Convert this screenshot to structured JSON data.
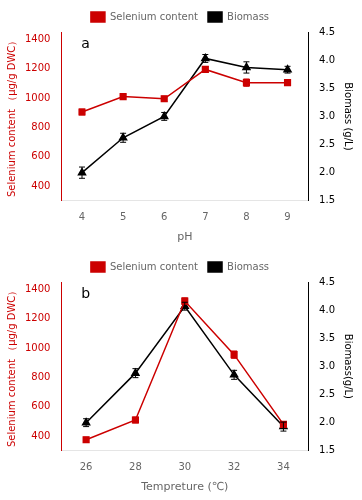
{
  "chart_data": [
    {
      "type": "line",
      "annotation": "a",
      "x_label": "pH",
      "y_label": "Selenium content （μg/g DWC）",
      "y2_label": "Biomass (g/L)",
      "x": [
        4,
        5,
        6,
        7,
        8,
        9
      ],
      "series": [
        {
          "name": "Selenium content",
          "color": "#cc0000",
          "marker": "square",
          "values": [
            905,
            1010,
            995,
            1195,
            1105,
            1105
          ],
          "errors": [
            20,
            15,
            18,
            20,
            25,
            18
          ]
        },
        {
          "name": "Biomass",
          "color": "#000000",
          "marker": "triangle",
          "axis": "y2",
          "values": [
            2.0,
            2.62,
            3.0,
            4.03,
            3.87,
            3.83
          ],
          "errors": [
            0.1,
            0.08,
            0.07,
            0.07,
            0.1,
            0.06
          ]
        }
      ],
      "xlim": [
        3.5,
        9.5
      ],
      "xticks": [
        4,
        5,
        6,
        7,
        8,
        9
      ],
      "ylim": [
        300,
        1450
      ],
      "yticks": [
        400,
        600,
        800,
        1000,
        1200,
        1400
      ],
      "y2lim": [
        1.5,
        4.5
      ],
      "y2ticks": [
        1.5,
        {
          "value": 2.0,
          "label": "2.0"
        },
        2.5,
        {
          "value": 3.0,
          "label": "3.0"
        },
        3.5,
        {
          "value": 4.0,
          "label": "4.0"
        },
        4.5
      ],
      "grid": false,
      "legend": "top"
    },
    {
      "type": "line",
      "annotation": "b",
      "x_label": "Tempreture (℃)",
      "y_label": "Selenium content （μg/g DWC）",
      "y2_label": "Biomass(g/L)",
      "x": [
        26,
        28,
        30,
        32,
        34
      ],
      "series": [
        {
          "name": "Selenium content",
          "color": "#cc0000",
          "marker": "square",
          "values": [
            375,
            510,
            1320,
            955,
            480
          ],
          "errors": [
            18,
            20,
            22,
            25,
            18
          ]
        },
        {
          "name": "Biomass",
          "color": "#000000",
          "marker": "triangle",
          "axis": "y2",
          "values": [
            2.0,
            2.88,
            4.07,
            2.85,
            1.93
          ],
          "errors": [
            0.07,
            0.08,
            0.07,
            0.08,
            0.08
          ]
        }
      ],
      "xlim": [
        25.0,
        35.0
      ],
      "xticks": [
        26,
        28,
        30,
        32,
        34
      ],
      "ylim": [
        300,
        1450
      ],
      "yticks": [
        400,
        600,
        800,
        1000,
        1200,
        1400
      ],
      "y2lim": [
        1.5,
        4.5
      ],
      "y2ticks": [
        1.5,
        {
          "value": 2.0,
          "label": "2.0"
        },
        2.5,
        {
          "value": 3.0,
          "label": "3.0"
        },
        3.5,
        {
          "value": 4.0,
          "label": "4.0"
        },
        4.5
      ],
      "grid": false,
      "legend": "top"
    }
  ]
}
